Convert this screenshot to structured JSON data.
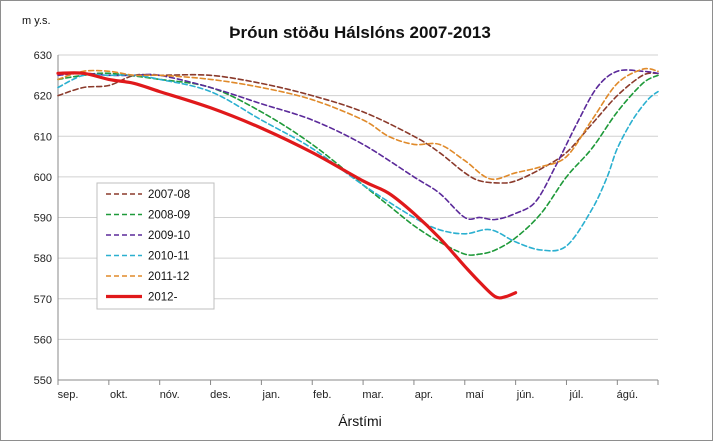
{
  "chart_data": {
    "type": "line",
    "title": "Þróun stöðu Hálslóns 2007-2013",
    "ylabel": "m y.s.",
    "xlabel": "Árstími",
    "ylim": [
      550,
      630
    ],
    "yticks": [
      550,
      560,
      570,
      580,
      590,
      600,
      610,
      620,
      630
    ],
    "x_categories": [
      "sep.",
      "okt.",
      "nóv.",
      "des.",
      "jan.",
      "feb.",
      "mar.",
      "apr.",
      "maí",
      "jún.",
      "júl.",
      "ágú."
    ],
    "xlim": [
      0,
      11.8
    ],
    "grid": "horizontal",
    "legend_position": "left-center",
    "series": [
      {
        "name": "2007-08",
        "color": "#8b3a2b",
        "style": "dashed",
        "x": [
          0,
          0.5,
          1,
          1.5,
          2,
          3,
          4,
          5,
          6,
          7,
          7.5,
          8,
          8.3,
          8.7,
          9,
          9.5,
          10,
          10.5,
          11,
          11.5,
          11.8
        ],
        "y": [
          620,
          622,
          622.5,
          625,
          625,
          625,
          623,
          620,
          616,
          610,
          606,
          601,
          599,
          598.5,
          599,
          602,
          606,
          613,
          620,
          625,
          625.5
        ]
      },
      {
        "name": "2008-09",
        "color": "#1f9a3a",
        "style": "dashed",
        "x": [
          0,
          0.5,
          1,
          2,
          3,
          4,
          5,
          6,
          6.5,
          7,
          7.5,
          8,
          8.3,
          8.6,
          9,
          9.5,
          10,
          10.5,
          11,
          11.5,
          11.8
        ],
        "y": [
          624,
          625,
          625.5,
          624,
          622,
          616,
          608,
          598,
          593,
          588,
          584,
          581,
          581,
          582,
          585,
          591,
          600,
          607,
          616,
          623,
          625
        ]
      },
      {
        "name": "2009-10",
        "color": "#5b2a9a",
        "style": "dashed",
        "x": [
          0,
          0.5,
          1,
          1.5,
          2,
          3,
          4,
          5,
          6,
          7,
          7.5,
          8,
          8.3,
          8.6,
          9,
          9.4,
          9.8,
          10.2,
          10.6,
          11,
          11.5,
          11.8
        ],
        "y": [
          625,
          625.5,
          625,
          625,
          625,
          622,
          618,
          614,
          608,
          600,
          596,
          590,
          590,
          589.5,
          591,
          594,
          603,
          613,
          622,
          626,
          626,
          625.5
        ]
      },
      {
        "name": "2010-11",
        "color": "#2bb0d0",
        "style": "dashed",
        "x": [
          0,
          0.5,
          1,
          1.5,
          2,
          3,
          4,
          5,
          6,
          7,
          7.5,
          8,
          8.5,
          9,
          9.5,
          10,
          10.5,
          10.8,
          11,
          11.3,
          11.6,
          11.8
        ],
        "y": [
          622,
          625,
          625,
          625,
          624,
          621,
          614,
          607,
          598,
          590,
          587,
          586,
          587,
          584,
          582,
          583,
          592,
          600,
          607,
          614,
          619,
          621
        ]
      },
      {
        "name": "2011-12",
        "color": "#e08a2a",
        "style": "dashed",
        "x": [
          0,
          0.5,
          1,
          1.5,
          2,
          3,
          4,
          5,
          6,
          6.5,
          7,
          7.5,
          8,
          8.5,
          9,
          9.5,
          10,
          10.5,
          11,
          11.5,
          11.8
        ],
        "y": [
          624,
          626,
          626,
          625,
          625,
          624,
          622,
          619,
          614,
          610,
          608,
          608,
          604,
          599.5,
          601,
          602.5,
          605,
          614,
          623,
          626.5,
          626
        ]
      },
      {
        "name": "2012-",
        "color": "#e0191b",
        "style": "solid",
        "x": [
          0,
          0.5,
          1,
          1.5,
          2,
          3,
          4,
          5,
          6,
          6.5,
          7,
          7.5,
          8,
          8.3,
          8.6,
          8.8,
          9
        ],
        "y": [
          625.5,
          625.5,
          624,
          623,
          621,
          617,
          612,
          606,
          599,
          596,
          591,
          585,
          578,
          574,
          570.5,
          570.5,
          571.5
        ]
      }
    ]
  }
}
